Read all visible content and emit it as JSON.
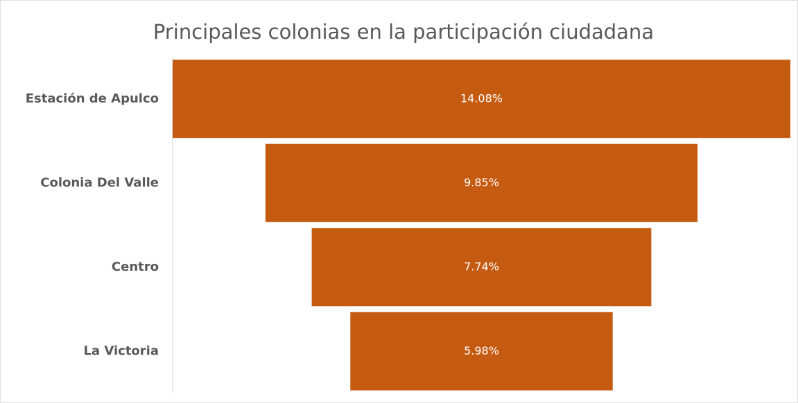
{
  "chart_data": {
    "type": "funnel",
    "title": "Principales colonias en la participación ciudadana",
    "categories": [
      "Estación de Apulco",
      "Colonia Del Valle",
      "Centro",
      "La Victoria"
    ],
    "values": [
      14.08,
      9.85,
      7.74,
      5.98
    ],
    "value_labels": [
      "14.08%",
      "9.85%",
      "7.74%",
      "5.98%"
    ],
    "color": "#c55a11"
  }
}
